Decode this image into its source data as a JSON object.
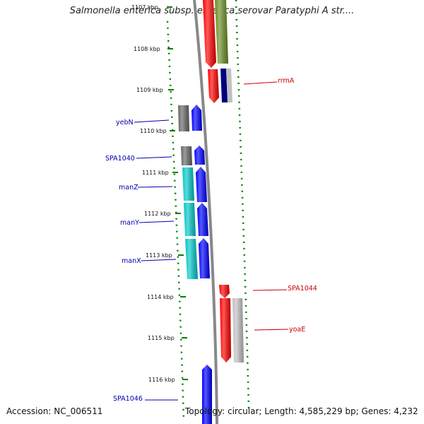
{
  "header": {
    "title": "Salmonella enterica subsp. enterica serovar Paratyphi A str...."
  },
  "footer": {
    "accession": "Accession: NC_006511",
    "topology": "Topology: circular; Length: 4,585,229 bp; Genes: 4,232"
  },
  "map": {
    "ticks": [
      "1107 kbp",
      "1108 kbp",
      "1109 kbp",
      "1110 kbp",
      "1111 kbp",
      "1112 kbp",
      "1113 kbp",
      "1114 kbp",
      "1115 kbp",
      "1116 kbp"
    ],
    "labels_left": [
      "yebN",
      "SPA1040",
      "manZ",
      "manY",
      "manX",
      "SPA1046"
    ],
    "labels_right": [
      "rrmA",
      "SPA1044",
      "yoaE"
    ]
  },
  "colors": {
    "blue": "#0000ff",
    "red": "#ff0000",
    "olive": "#6b8e23",
    "cyan": "#00c8c8",
    "gray": "#666666",
    "navy": "#000080",
    "lightgray": "#c0c0c0",
    "ruler": "#008000",
    "backbone": "#888888",
    "label_left": "#0000aa",
    "label_right": "#cc0000"
  }
}
